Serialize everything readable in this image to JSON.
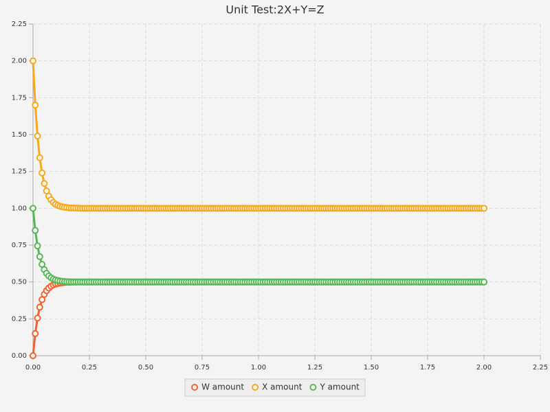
{
  "chart_data": {
    "type": "line",
    "title": "Unit Test:2X+Y=Z",
    "x": [
      0,
      0.01,
      0.02,
      0.03,
      0.04,
      0.05,
      0.06,
      0.07,
      0.08,
      0.09,
      0.1,
      0.11,
      0.12,
      0.13,
      0.14,
      0.15,
      0.16,
      0.17,
      0.18,
      0.19,
      0.2,
      0.21,
      0.22,
      0.23,
      0.24,
      0.25,
      0.26,
      0.27,
      0.28,
      0.29,
      0.3,
      0.31,
      0.32,
      0.33,
      0.34,
      0.35,
      0.36,
      0.37,
      0.38,
      0.39,
      0.4,
      0.41,
      0.42,
      0.43,
      0.44,
      0.45,
      0.46,
      0.47,
      0.48,
      0.49,
      0.5,
      0.51,
      0.52,
      0.53,
      0.54,
      0.55,
      0.56,
      0.57,
      0.58,
      0.59,
      0.6,
      0.61,
      0.62,
      0.63,
      0.64,
      0.65,
      0.66,
      0.67,
      0.68,
      0.69,
      0.7,
      0.71,
      0.72,
      0.73,
      0.74,
      0.75,
      0.76,
      0.77,
      0.78,
      0.79,
      0.8,
      0.81,
      0.82,
      0.83,
      0.84,
      0.85,
      0.86,
      0.87,
      0.88,
      0.89,
      0.9,
      0.91,
      0.92,
      0.93,
      0.94,
      0.95,
      0.96,
      0.97,
      0.98,
      0.99,
      1,
      1.01,
      1.02,
      1.03,
      1.04,
      1.05,
      1.06,
      1.07,
      1.08,
      1.09,
      1.1,
      1.11,
      1.12,
      1.13,
      1.14,
      1.15,
      1.16,
      1.17,
      1.18,
      1.19,
      1.2,
      1.21,
      1.22,
      1.23,
      1.24,
      1.25,
      1.26,
      1.27,
      1.28,
      1.29,
      1.3,
      1.31,
      1.32,
      1.33,
      1.34,
      1.35,
      1.36,
      1.37,
      1.38,
      1.39,
      1.4,
      1.41,
      1.42,
      1.43,
      1.44,
      1.45,
      1.46,
      1.47,
      1.48,
      1.49,
      1.5,
      1.51,
      1.52,
      1.53,
      1.54,
      1.55,
      1.56,
      1.57,
      1.58,
      1.59,
      1.6,
      1.61,
      1.62,
      1.63,
      1.64,
      1.65,
      1.66,
      1.67,
      1.68,
      1.69,
      1.7,
      1.71,
      1.72,
      1.73,
      1.74,
      1.75,
      1.76,
      1.77,
      1.78,
      1.79,
      1.8,
      1.81,
      1.82,
      1.83,
      1.84,
      1.85,
      1.86,
      1.87,
      1.88,
      1.89,
      1.9,
      1.91,
      1.92,
      1.93,
      1.94,
      1.95,
      1.96,
      1.97,
      1.98,
      1.99,
      2
    ],
    "series": [
      {
        "name": "W amount",
        "color": "#f3622d",
        "values": [
          0,
          0.15,
          0.255,
          0.329,
          0.38,
          0.416,
          0.441,
          0.459,
          0.471,
          0.48,
          0.486,
          0.49,
          0.493,
          0.495,
          0.497,
          0.498,
          0.498,
          0.499,
          0.499,
          0.499,
          0.5,
          0.5,
          0.5,
          0.5,
          0.5,
          0.5,
          0.5,
          0.5,
          0.5,
          0.5,
          0.5,
          0.5,
          0.5,
          0.5,
          0.5,
          0.5,
          0.5,
          0.5,
          0.5,
          0.5,
          0.5,
          0.5,
          0.5,
          0.5,
          0.5,
          0.5,
          0.5,
          0.5,
          0.5,
          0.5,
          0.5,
          0.5,
          0.5,
          0.5,
          0.5,
          0.5,
          0.5,
          0.5,
          0.5,
          0.5,
          0.5,
          0.5,
          0.5,
          0.5,
          0.5,
          0.5,
          0.5,
          0.5,
          0.5,
          0.5,
          0.5,
          0.5,
          0.5,
          0.5,
          0.5,
          0.5,
          0.5,
          0.5,
          0.5,
          0.5,
          0.5,
          0.5,
          0.5,
          0.5,
          0.5,
          0.5,
          0.5,
          0.5,
          0.5,
          0.5,
          0.5,
          0.5,
          0.5,
          0.5,
          0.5,
          0.5,
          0.5,
          0.5,
          0.5,
          0.5,
          0.5,
          0.5,
          0.5,
          0.5,
          0.5,
          0.5,
          0.5,
          0.5,
          0.5,
          0.5,
          0.5,
          0.5,
          0.5,
          0.5,
          0.5,
          0.5,
          0.5,
          0.5,
          0.5,
          0.5,
          0.5,
          0.5,
          0.5,
          0.5,
          0.5,
          0.5,
          0.5,
          0.5,
          0.5,
          0.5,
          0.5,
          0.5,
          0.5,
          0.5,
          0.5,
          0.5,
          0.5,
          0.5,
          0.5,
          0.5,
          0.5,
          0.5,
          0.5,
          0.5,
          0.5,
          0.5,
          0.5,
          0.5,
          0.5,
          0.5,
          0.5,
          0.5,
          0.5,
          0.5,
          0.5,
          0.5,
          0.5,
          0.5,
          0.5,
          0.5,
          0.5,
          0.5,
          0.5,
          0.5,
          0.5,
          0.5,
          0.5,
          0.5,
          0.5,
          0.5,
          0.5,
          0.5,
          0.5,
          0.5,
          0.5,
          0.5,
          0.5,
          0.5,
          0.5,
          0.5,
          0.5,
          0.5,
          0.5,
          0.5,
          0.5,
          0.5,
          0.5,
          0.5,
          0.5,
          0.5,
          0.5,
          0.5,
          0.5,
          0.5,
          0.5,
          0.5,
          0.5,
          0.5,
          0.5,
          0.5,
          0.5
        ]
      },
      {
        "name": "X amount",
        "color": "#fba71b",
        "values": [
          2,
          1.7,
          1.49,
          1.343,
          1.24,
          1.168,
          1.118,
          1.082,
          1.058,
          1.04,
          1.028,
          1.02,
          1.014,
          1.01,
          1.007,
          1.005,
          1.003,
          1.002,
          1.002,
          1.001,
          1.001,
          1,
          1,
          1,
          1,
          1,
          1,
          1,
          1,
          1,
          1,
          1,
          1,
          1,
          1,
          1,
          1,
          1,
          1,
          1,
          1,
          1,
          1,
          1,
          1,
          1,
          1,
          1,
          1,
          1,
          1,
          1,
          1,
          1,
          1,
          1,
          1,
          1,
          1,
          1,
          1,
          1,
          1,
          1,
          1,
          1,
          1,
          1,
          1,
          1,
          1,
          1,
          1,
          1,
          1,
          1,
          1,
          1,
          1,
          1,
          1,
          1,
          1,
          1,
          1,
          1,
          1,
          1,
          1,
          1,
          1,
          1,
          1,
          1,
          1,
          1,
          1,
          1,
          1,
          1,
          1,
          1,
          1,
          1,
          1,
          1,
          1,
          1,
          1,
          1,
          1,
          1,
          1,
          1,
          1,
          1,
          1,
          1,
          1,
          1,
          1,
          1,
          1,
          1,
          1,
          1,
          1,
          1,
          1,
          1,
          1,
          1,
          1,
          1,
          1,
          1,
          1,
          1,
          1,
          1,
          1,
          1,
          1,
          1,
          1,
          1,
          1,
          1,
          1,
          1,
          1,
          1,
          1,
          1,
          1,
          1,
          1,
          1,
          1,
          1,
          1,
          1,
          1,
          1,
          1,
          1,
          1,
          1,
          1,
          1,
          1,
          1,
          1,
          1,
          1,
          1,
          1,
          1,
          1,
          1,
          1,
          1,
          1,
          1,
          1,
          1,
          1,
          1,
          1,
          1,
          1,
          1,
          1,
          1,
          1,
          1,
          1,
          1,
          1,
          1,
          1
        ]
      },
      {
        "name": "Y amount",
        "color": "#57b757",
        "values": [
          1,
          0.85,
          0.745,
          0.672,
          0.62,
          0.584,
          0.559,
          0.541,
          0.529,
          0.52,
          0.514,
          0.51,
          0.507,
          0.505,
          0.503,
          0.502,
          0.502,
          0.501,
          0.501,
          0.501,
          0.5,
          0.5,
          0.5,
          0.5,
          0.5,
          0.5,
          0.5,
          0.5,
          0.5,
          0.5,
          0.5,
          0.5,
          0.5,
          0.5,
          0.5,
          0.5,
          0.5,
          0.5,
          0.5,
          0.5,
          0.5,
          0.5,
          0.5,
          0.5,
          0.5,
          0.5,
          0.5,
          0.5,
          0.5,
          0.5,
          0.5,
          0.5,
          0.5,
          0.5,
          0.5,
          0.5,
          0.5,
          0.5,
          0.5,
          0.5,
          0.5,
          0.5,
          0.5,
          0.5,
          0.5,
          0.5,
          0.5,
          0.5,
          0.5,
          0.5,
          0.5,
          0.5,
          0.5,
          0.5,
          0.5,
          0.5,
          0.5,
          0.5,
          0.5,
          0.5,
          0.5,
          0.5,
          0.5,
          0.5,
          0.5,
          0.5,
          0.5,
          0.5,
          0.5,
          0.5,
          0.5,
          0.5,
          0.5,
          0.5,
          0.5,
          0.5,
          0.5,
          0.5,
          0.5,
          0.5,
          0.5,
          0.5,
          0.5,
          0.5,
          0.5,
          0.5,
          0.5,
          0.5,
          0.5,
          0.5,
          0.5,
          0.5,
          0.5,
          0.5,
          0.5,
          0.5,
          0.5,
          0.5,
          0.5,
          0.5,
          0.5,
          0.5,
          0.5,
          0.5,
          0.5,
          0.5,
          0.5,
          0.5,
          0.5,
          0.5,
          0.5,
          0.5,
          0.5,
          0.5,
          0.5,
          0.5,
          0.5,
          0.5,
          0.5,
          0.5,
          0.5,
          0.5,
          0.5,
          0.5,
          0.5,
          0.5,
          0.5,
          0.5,
          0.5,
          0.5,
          0.5,
          0.5,
          0.5,
          0.5,
          0.5,
          0.5,
          0.5,
          0.5,
          0.5,
          0.5,
          0.5,
          0.5,
          0.5,
          0.5,
          0.5,
          0.5,
          0.5,
          0.5,
          0.5,
          0.5,
          0.5,
          0.5,
          0.5,
          0.5,
          0.5,
          0.5,
          0.5,
          0.5,
          0.5,
          0.5,
          0.5,
          0.5,
          0.5,
          0.5,
          0.5,
          0.5,
          0.5,
          0.5,
          0.5,
          0.5,
          0.5,
          0.5,
          0.5,
          0.5,
          0.5,
          0.5,
          0.5,
          0.5,
          0.5,
          0.5,
          0.5
        ]
      }
    ],
    "xlim": [
      0,
      2.25
    ],
    "xticks": [
      {
        "value": 0,
        "label": "0.00"
      },
      {
        "value": 0.25,
        "label": "0.25"
      },
      {
        "value": 0.5,
        "label": "0.50"
      },
      {
        "value": 0.75,
        "label": "0.75"
      },
      {
        "value": 1,
        "label": "1.00"
      },
      {
        "value": 1.25,
        "label": "1.25"
      },
      {
        "value": 1.5,
        "label": "1.50"
      },
      {
        "value": 1.75,
        "label": "1.75"
      },
      {
        "value": 2,
        "label": "2.00"
      },
      {
        "value": 2.25,
        "label": "2.25"
      }
    ],
    "ylim": [
      0,
      2.25
    ],
    "yticks": [
      {
        "value": 0,
        "label": "0.00"
      },
      {
        "value": 0.25,
        "label": "0.25"
      },
      {
        "value": 0.5,
        "label": "0.50"
      },
      {
        "value": 0.75,
        "label": "0.75"
      },
      {
        "value": 1,
        "label": "1.00"
      },
      {
        "value": 1.25,
        "label": "1.25"
      },
      {
        "value": 1.5,
        "label": "1.50"
      },
      {
        "value": 1.75,
        "label": "1.75"
      },
      {
        "value": 2,
        "label": "2.00"
      },
      {
        "value": 2.25,
        "label": "2.25"
      }
    ],
    "grid": true,
    "legend": "bottom"
  }
}
